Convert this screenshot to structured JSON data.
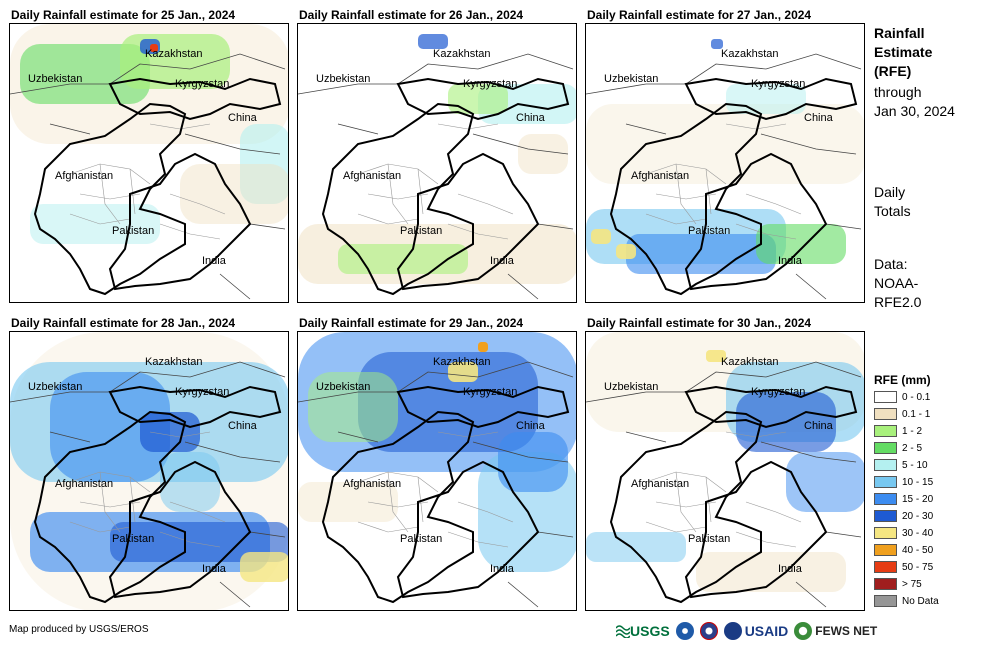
{
  "panels": [
    {
      "title": "Daily Rainfall estimate for 25 Jan., 2024",
      "rain": "p25"
    },
    {
      "title": "Daily Rainfall estimate for 26 Jan., 2024",
      "rain": "p26"
    },
    {
      "title": "Daily Rainfall estimate for 27 Jan., 2024",
      "rain": "p27"
    },
    {
      "title": "Daily Rainfall estimate for 28 Jan., 2024",
      "rain": "p28"
    },
    {
      "title": "Daily Rainfall estimate for 29 Jan., 2024",
      "rain": "p29"
    },
    {
      "title": "Daily Rainfall estimate for 30 Jan., 2024",
      "rain": "p30"
    }
  ],
  "map_labels": {
    "kazakhstan": "Kazakhstan",
    "uzbekistan": "Uzbekistan",
    "kyrgyzstan": "Kyrgyzstan",
    "china": "China",
    "afghanistan": "Afghanistan",
    "pakistan": "Pakistan",
    "india": "India"
  },
  "side": {
    "title_line1": "Rainfall",
    "title_line2": "Estimate",
    "title_line3": "(RFE)",
    "through": "through",
    "date": "Jan 30, 2024",
    "daily": "Daily",
    "totals": "Totals",
    "data_label": "Data:",
    "data_src1": "NOAA-",
    "data_src2": "RFE2.0"
  },
  "legend": {
    "title": "RFE (mm)",
    "items": [
      {
        "label": "0 - 0.1",
        "color": "#ffffff"
      },
      {
        "label": "0.1 - 1",
        "color": "#f0e0c0"
      },
      {
        "label": "1 - 2",
        "color": "#a8f07c"
      },
      {
        "label": "2 - 5",
        "color": "#64dc64"
      },
      {
        "label": "5 - 10",
        "color": "#b4f0f0"
      },
      {
        "label": "10 - 15",
        "color": "#78c8f0"
      },
      {
        "label": "15 - 20",
        "color": "#3c8cf0"
      },
      {
        "label": "20 - 30",
        "color": "#1e5ad2"
      },
      {
        "label": "30 - 40",
        "color": "#f5e682"
      },
      {
        "label": "40 - 50",
        "color": "#f0a01e"
      },
      {
        "label": "50 - 75",
        "color": "#e63c14"
      },
      {
        "label": "> 75",
        "color": "#a01e1e"
      },
      {
        "label": "No Data",
        "color": "#969696"
      }
    ]
  },
  "credit": "Map produced by USGS/EROS",
  "logos": {
    "usgs": "USGS",
    "usaid": "USAID",
    "fewsnet": "FEWS NET"
  }
}
